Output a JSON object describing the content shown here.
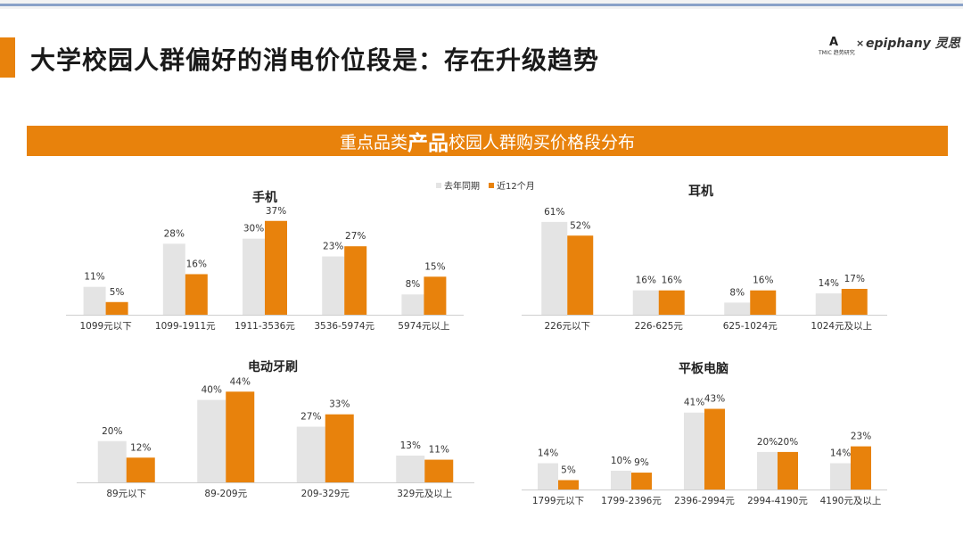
{
  "page": {
    "title": "大学校园人群偏好的消电价位段是：存在升级趋势",
    "logo": {
      "mark": "A",
      "brand": "TMIC 趋势研究",
      "separator": "×",
      "partner": "epiphany 灵思"
    },
    "banner": {
      "prefix": "重点品类",
      "emphasis": "产品",
      "suffix": "校园人群购买价格段分布"
    },
    "legend": {
      "prior": "去年同期",
      "recent": "近12个月"
    },
    "colors": {
      "prior": "#e4e4e4",
      "recent": "#e8820c",
      "axis": "#cfcfcf"
    }
  },
  "chart_data": [
    {
      "id": "phone",
      "type": "bar",
      "title": "手机",
      "categories": [
        "1099元以下",
        "1099-1911元",
        "1911-3536元",
        "3536-5974元",
        "5974元以上"
      ],
      "series": [
        {
          "name": "去年同期",
          "values": [
            11,
            28,
            30,
            23,
            8
          ]
        },
        {
          "name": "近12个月",
          "values": [
            5,
            16,
            37,
            27,
            15
          ]
        }
      ],
      "ylim": [
        0,
        45
      ],
      "unit": "%"
    },
    {
      "id": "earphone",
      "type": "bar",
      "title": "耳机",
      "categories": [
        "226元以下",
        "226-625元",
        "625-1024元",
        "1024元及以上"
      ],
      "series": [
        {
          "name": "去年同期",
          "values": [
            61,
            16,
            8,
            14
          ]
        },
        {
          "name": "近12个月",
          "values": [
            52,
            16,
            16,
            17
          ]
        }
      ],
      "ylim": [
        0,
        75
      ],
      "unit": "%"
    },
    {
      "id": "toothbrush",
      "type": "bar",
      "title": "电动牙刷",
      "categories": [
        "89元以下",
        "89-209元",
        "209-329元",
        "329元及以上"
      ],
      "series": [
        {
          "name": "去年同期",
          "values": [
            20,
            40,
            27,
            13
          ]
        },
        {
          "name": "近12个月",
          "values": [
            12,
            44,
            33,
            11
          ]
        }
      ],
      "ylim": [
        0,
        48
      ],
      "unit": "%"
    },
    {
      "id": "tablet",
      "type": "bar",
      "title": "平板电脑",
      "categories": [
        "1799元以下",
        "1799-2396元",
        "2396-2994元",
        "2994-4190元",
        "4190元及以上"
      ],
      "series": [
        {
          "name": "去年同期",
          "values": [
            14,
            10,
            41,
            20,
            14
          ]
        },
        {
          "name": "近12个月",
          "values": [
            5,
            9,
            43,
            20,
            23
          ]
        }
      ],
      "ylim": [
        0,
        48
      ],
      "unit": "%"
    }
  ]
}
